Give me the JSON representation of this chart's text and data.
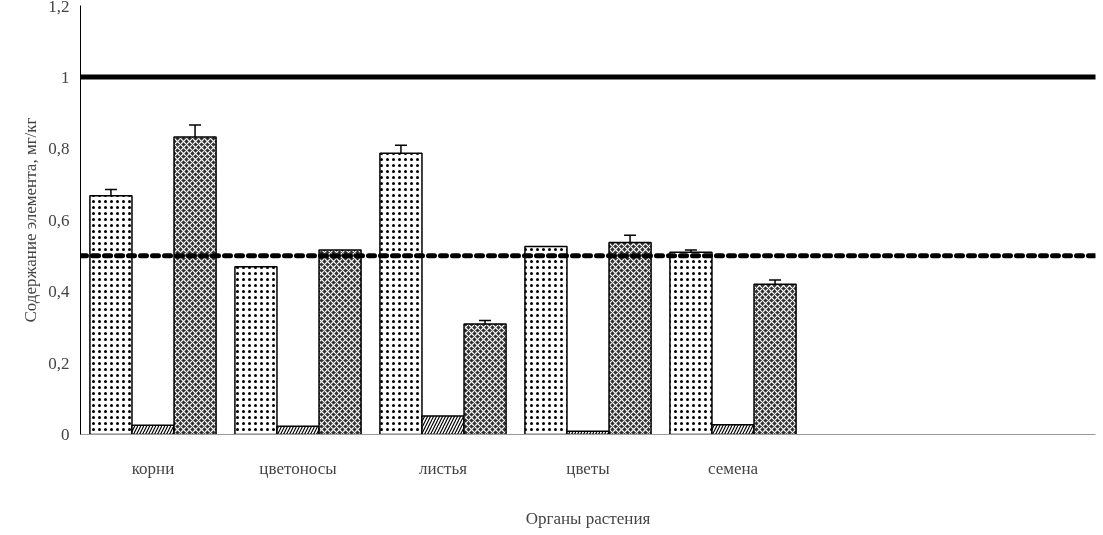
{
  "chart_data": {
    "type": "bar",
    "xlabel": "Органы растения",
    "ylabel": "Содержание элемента, мг/кг",
    "categories": [
      "корни",
      "цветоносы",
      "листья",
      "цветы",
      "семена",
      null,
      null
    ],
    "series": [
      {
        "color": "#ffffff",
        "values": [
          0.668,
          0.469,
          0.787,
          0.526,
          0.51,
          null,
          null
        ],
        "errors": [
          0.017,
          null,
          0.022,
          null,
          0.006,
          null,
          null
        ]
      },
      {
        "color": "#ffffff",
        "values": [
          0.026,
          0.023,
          0.052,
          0.009,
          0.027,
          null,
          null
        ]
      },
      {
        "color": "#303030",
        "values": [
          0.832,
          0.516,
          0.309,
          0.537,
          0.42,
          null,
          null
        ],
        "errors": [
          0.034,
          null,
          0.01,
          0.02,
          0.012,
          null,
          null
        ]
      }
    ],
    "ylim": [
      0,
      1.2
    ],
    "yticks": [
      0,
      {
        "value": 0.2,
        "label": "0,2"
      },
      {
        "value": 0.4,
        "label": "0,4"
      },
      {
        "value": 0.6,
        "label": "0,6"
      },
      {
        "value": 0.8,
        "label": "0,8"
      },
      1,
      {
        "value": 1.2,
        "label": "1,2"
      }
    ],
    "ref_lines": [
      {
        "axis": "y",
        "value": 1,
        "line_style": "solid",
        "color": "#000000"
      },
      {
        "axis": "y",
        "value": 0.5,
        "line_style": "dashed",
        "color": "#000000"
      }
    ],
    "grid": false
  }
}
